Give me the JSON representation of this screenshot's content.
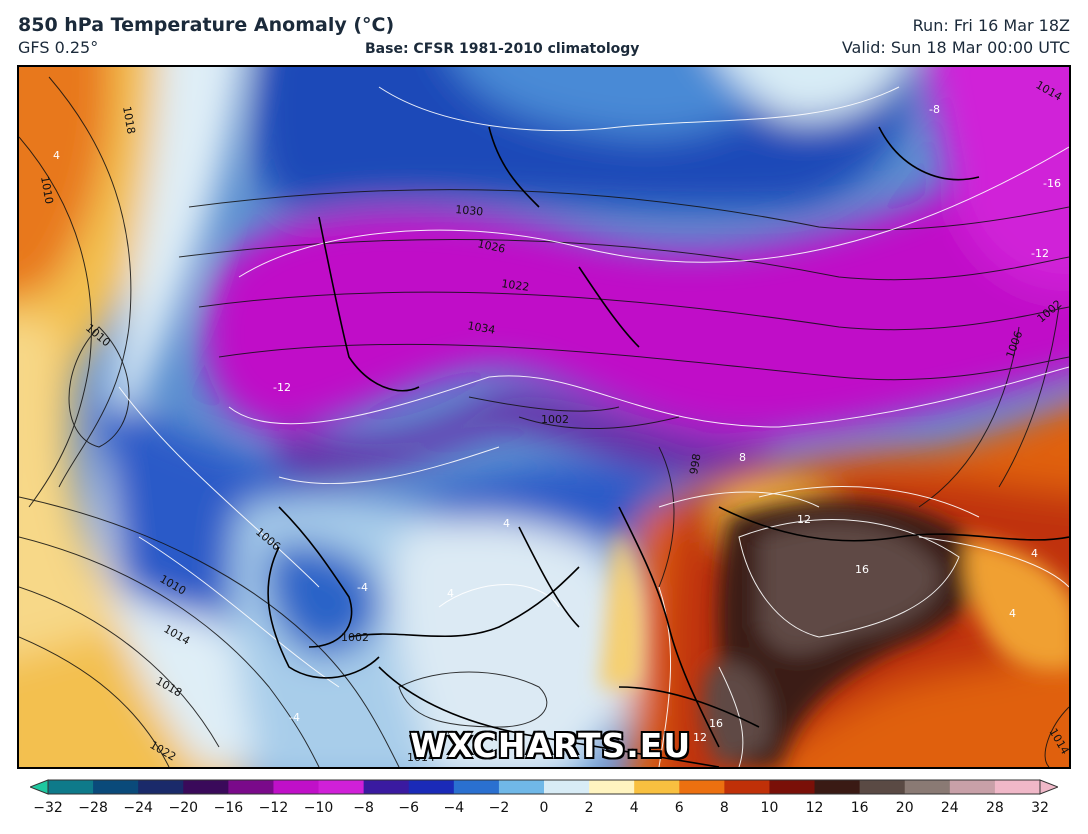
{
  "header": {
    "title": "850 hPa Temperature Anomaly (°C)",
    "model": "GFS 0.25°",
    "base": "Base: CFSR 1981-2010 climatology",
    "run": "Run: Fri 16 Mar 18Z",
    "valid": "Valid: Sun 18 Mar 00:00 UTC"
  },
  "watermark": "WXCHARTS.EU",
  "isobar_labels": [
    "1018",
    "1010",
    "1010",
    "1030",
    "1026",
    "1022",
    "1034",
    "1002",
    "998",
    "1006",
    "1010",
    "1014",
    "1018",
    "1022",
    "1002",
    "1014",
    "1006",
    "1002",
    "1014",
    "1014"
  ],
  "anomaly_labels": [
    "4",
    "-8",
    "-16",
    "-12",
    "-12",
    "-4",
    "-4",
    "8",
    "12",
    "16",
    "4",
    "4",
    "16",
    "12",
    "4",
    "4"
  ],
  "colorbar": {
    "ticks": [
      "−32",
      "−28",
      "−24",
      "−20",
      "−16",
      "−12",
      "−10",
      "−8",
      "−6",
      "−4",
      "−2",
      "0",
      "2",
      "4",
      "6",
      "8",
      "10",
      "12",
      "16",
      "20",
      "24",
      "28",
      "32"
    ],
    "colors": [
      "#1fc8a0",
      "#0e7a8a",
      "#0a4a7a",
      "#1a2a6a",
      "#3a0a5a",
      "#7a0a8a",
      "#c010c8",
      "#d020d8",
      "#3a1aa0",
      "#1a2ab8",
      "#2a70d0",
      "#70b8e8",
      "#d8ecf6",
      "#fff4c0",
      "#f8c040",
      "#ec7010",
      "#c03008",
      "#7a1008",
      "#3a1a14",
      "#5a4a44",
      "#8a7a74",
      "#c8a0a8",
      "#f0b8c8"
    ]
  }
}
